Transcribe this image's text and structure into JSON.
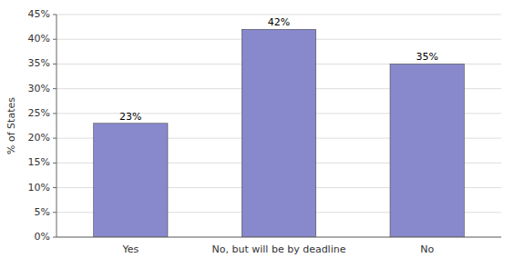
{
  "chart_data": {
    "type": "bar",
    "categories": [
      "Yes",
      "No, but will be by deadline",
      "No"
    ],
    "values": [
      23,
      42,
      35
    ],
    "value_labels": [
      "23%",
      "42%",
      "35%"
    ],
    "data_labels": true,
    "color": "#8888cc",
    "ylabel": "% of States",
    "ylim": [
      0,
      45
    ],
    "yticks": [
      {
        "value": 0,
        "label": "0%"
      },
      {
        "value": 5,
        "label": "5%"
      },
      {
        "value": 10,
        "label": "10%"
      },
      {
        "value": 15,
        "label": "15%"
      },
      {
        "value": 20,
        "label": "20%"
      },
      {
        "value": 25,
        "label": "25%"
      },
      {
        "value": 30,
        "label": "30%"
      },
      {
        "value": 35,
        "label": "35%"
      },
      {
        "value": 40,
        "label": "40%"
      },
      {
        "value": 45,
        "label": "45%"
      }
    ],
    "grid": true
  }
}
